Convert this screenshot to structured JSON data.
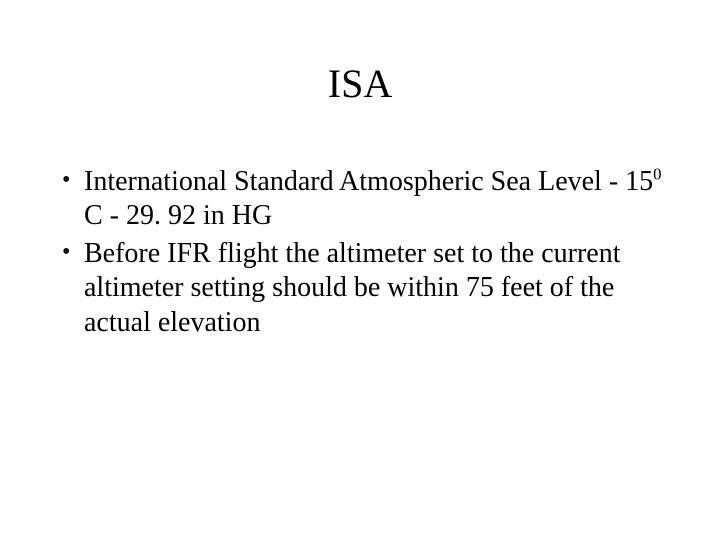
{
  "title": "ISA",
  "bullets": [
    {
      "pre": "International Standard Atmospheric Sea Level - 15",
      "sup": "0",
      "post": " C - 29. 92 in HG"
    },
    {
      "pre": "Before IFR flight the altimeter set to the current altimeter setting should be within 75 feet of the actual elevation",
      "sup": "",
      "post": ""
    }
  ],
  "colors": {
    "background": "#ffffff",
    "text": "#000000"
  },
  "font": {
    "family": "Times New Roman",
    "title_size_pt": 40,
    "body_size_pt": 28
  }
}
